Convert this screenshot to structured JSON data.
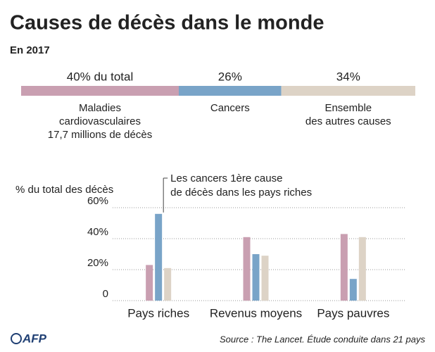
{
  "title": "Causes de décès dans le monde",
  "subtitle": "En 2017",
  "source": "Source : The Lancet. Étude conduite dans 21 pays",
  "logo": "AFP",
  "chart_data": [
    {
      "type": "share-bar",
      "categories": [
        "Maladies\ncardiovasculaires\n17,7 millions de décès",
        "Cancers",
        "Ensemble\ndes autres causes"
      ],
      "values": [
        40,
        26,
        34
      ],
      "value_labels": [
        "40% du total",
        "26%",
        "34%"
      ],
      "colors": [
        "#c99fb1",
        "#79a4c8",
        "#ddd3c6"
      ]
    },
    {
      "type": "bar",
      "y_label": "% du total des décès",
      "annotation": [
        "Les cancers 1ère cause",
        "de décès dans les pays riches"
      ],
      "categories": [
        "Pays riches",
        "Revenus moyens",
        "Pays pauvres"
      ],
      "series": [
        {
          "color": "#c99fb1",
          "values": [
            23,
            41,
            43
          ]
        },
        {
          "color": "#79a4c8",
          "values": [
            56,
            30,
            14
          ]
        },
        {
          "color": "#ddd3c6",
          "values": [
            21,
            29,
            41
          ]
        }
      ],
      "ylim": [
        0,
        60
      ],
      "yticks": [
        0,
        {
          "value": 20,
          "label": "20%"
        },
        {
          "value": 40,
          "label": "40%"
        },
        {
          "value": 60,
          "label": "60%"
        }
      ],
      "grid": true
    }
  ]
}
